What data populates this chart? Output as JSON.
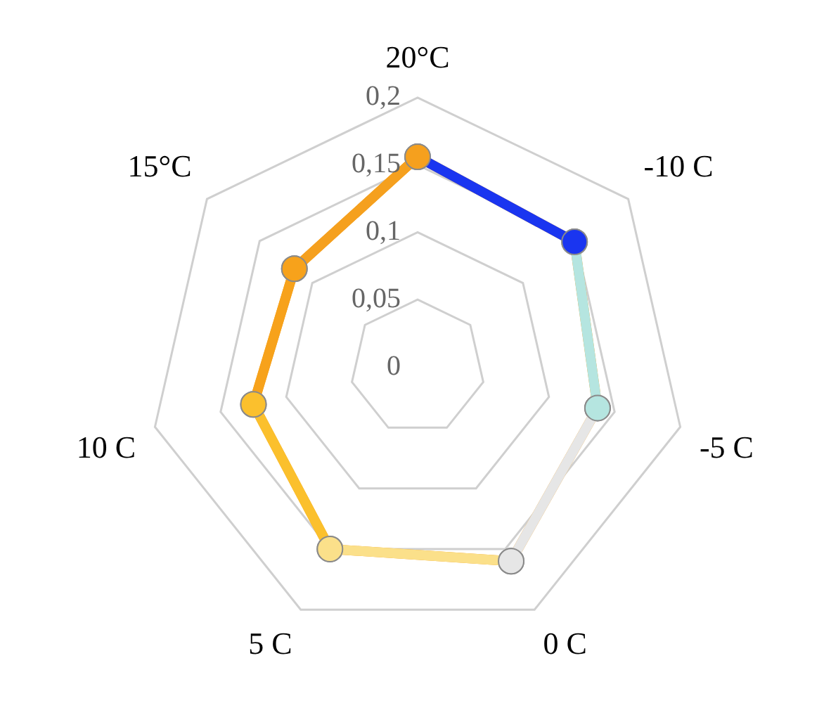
{
  "chart_data": {
    "type": "radar",
    "categories": [
      "20°C",
      "-10 C",
      "-5 C",
      "0 C",
      "5 C",
      "10 C",
      "15°C"
    ],
    "series": [
      {
        "values": [
          0.156,
          0.149,
          0.137,
          0.16,
          0.15,
          0.125,
          0.117
        ]
      }
    ],
    "colors": [
      "#f5a01e",
      "#1a35f0",
      "#b5e5e0",
      "#e6e6e6",
      "#fbe08a",
      "#fbc02d",
      "#f7a21b"
    ],
    "ylim": [
      0,
      0.2
    ],
    "yticks": [
      {
        "value": 0,
        "label": "0"
      },
      {
        "value": 0.05,
        "label": "0,05"
      },
      {
        "value": 0.1,
        "label": "0,1"
      },
      {
        "value": 0.15,
        "label": "0,15"
      },
      {
        "value": 0.2,
        "label": "0,2"
      }
    ],
    "grid": true,
    "legend": false,
    "marker": "circle"
  }
}
